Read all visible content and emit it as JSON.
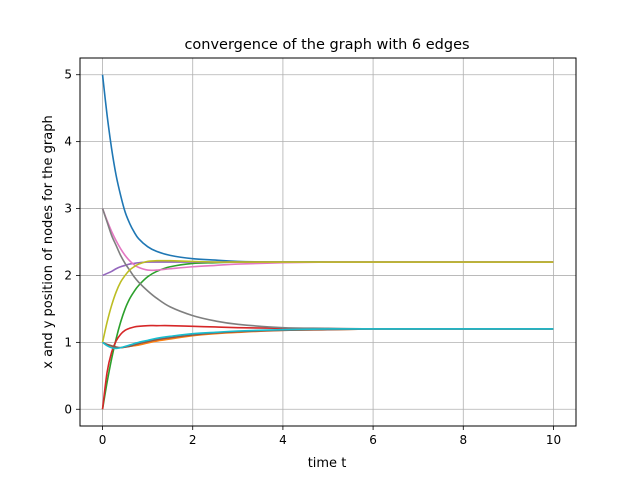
{
  "chart_data": {
    "type": "line",
    "title": "convergence of the graph with 6 edges",
    "xlabel": "time t",
    "ylabel": "x and y position of nodes for the graph",
    "xlim": [
      -0.5,
      10.5
    ],
    "ylim": [
      -0.25,
      5.25
    ],
    "x_ticks": [
      0,
      2,
      4,
      6,
      8,
      10
    ],
    "x_tick_labels": [
      "0",
      "2",
      "4",
      "6",
      "8",
      "10"
    ],
    "y_ticks": [
      0,
      1,
      2,
      3,
      4,
      5
    ],
    "y_tick_labels": [
      "0",
      "1",
      "2",
      "3",
      "4",
      "5"
    ],
    "grid": true,
    "x": [
      0,
      0.1,
      0.2,
      0.3,
      0.4,
      0.5,
      0.6,
      0.7,
      0.8,
      1.0,
      1.2,
      1.5,
      2,
      2.5,
      3,
      4,
      5,
      6,
      7,
      8,
      10
    ],
    "series": [
      {
        "color": "#1f77b4",
        "values": [
          5.0,
          4.4,
          3.9,
          3.5,
          3.2,
          2.95,
          2.78,
          2.65,
          2.55,
          2.43,
          2.36,
          2.3,
          2.25,
          2.23,
          2.21,
          2.2,
          2.2,
          2.2,
          2.2,
          2.2,
          2.2
        ]
      },
      {
        "color": "#ff7f0e",
        "values": [
          1.0,
          0.96,
          0.93,
          0.92,
          0.92,
          0.93,
          0.94,
          0.95,
          0.96,
          0.99,
          1.02,
          1.05,
          1.1,
          1.13,
          1.15,
          1.18,
          1.19,
          1.2,
          1.2,
          1.2,
          1.2
        ]
      },
      {
        "color": "#2ca02c",
        "values": [
          0.0,
          0.4,
          0.75,
          1.05,
          1.3,
          1.5,
          1.65,
          1.76,
          1.85,
          1.98,
          2.06,
          2.13,
          2.18,
          2.19,
          2.2,
          2.2,
          2.2,
          2.2,
          2.2,
          2.2,
          2.2
        ]
      },
      {
        "color": "#d62728",
        "values": [
          0.0,
          0.55,
          0.85,
          1.02,
          1.12,
          1.18,
          1.21,
          1.23,
          1.24,
          1.25,
          1.25,
          1.25,
          1.24,
          1.23,
          1.22,
          1.21,
          1.2,
          1.2,
          1.2,
          1.2,
          1.2
        ]
      },
      {
        "color": "#9467bd",
        "values": [
          2.0,
          2.03,
          2.06,
          2.1,
          2.13,
          2.15,
          2.17,
          2.18,
          2.19,
          2.2,
          2.2,
          2.2,
          2.2,
          2.2,
          2.2,
          2.2,
          2.2,
          2.2,
          2.2,
          2.2,
          2.2
        ]
      },
      {
        "color": "#8c564b",
        "values": [
          1.0,
          0.97,
          0.95,
          0.93,
          0.92,
          0.93,
          0.94,
          0.96,
          0.98,
          1.01,
          1.04,
          1.07,
          1.11,
          1.14,
          1.16,
          1.18,
          1.19,
          1.2,
          1.2,
          1.2,
          1.2
        ]
      },
      {
        "color": "#e377c2",
        "values": [
          3.0,
          2.82,
          2.66,
          2.52,
          2.4,
          2.3,
          2.22,
          2.16,
          2.12,
          2.08,
          2.08,
          2.1,
          2.13,
          2.15,
          2.17,
          2.19,
          2.2,
          2.2,
          2.2,
          2.2,
          2.2
        ]
      },
      {
        "color": "#7f7f7f",
        "values": [
          3.0,
          2.8,
          2.6,
          2.45,
          2.3,
          2.18,
          2.08,
          1.98,
          1.9,
          1.77,
          1.66,
          1.53,
          1.4,
          1.32,
          1.27,
          1.22,
          1.21,
          1.2,
          1.2,
          1.2,
          1.2
        ]
      },
      {
        "color": "#bcbd22",
        "values": [
          1.0,
          1.3,
          1.55,
          1.75,
          1.9,
          2.0,
          2.08,
          2.13,
          2.17,
          2.21,
          2.22,
          2.22,
          2.21,
          2.2,
          2.2,
          2.2,
          2.2,
          2.2,
          2.2,
          2.2,
          2.2
        ]
      },
      {
        "color": "#17becf",
        "values": [
          1.0,
          0.95,
          0.92,
          0.91,
          0.92,
          0.94,
          0.96,
          0.98,
          1.0,
          1.03,
          1.06,
          1.09,
          1.13,
          1.15,
          1.17,
          1.19,
          1.2,
          1.2,
          1.2,
          1.2,
          1.2
        ]
      }
    ]
  }
}
